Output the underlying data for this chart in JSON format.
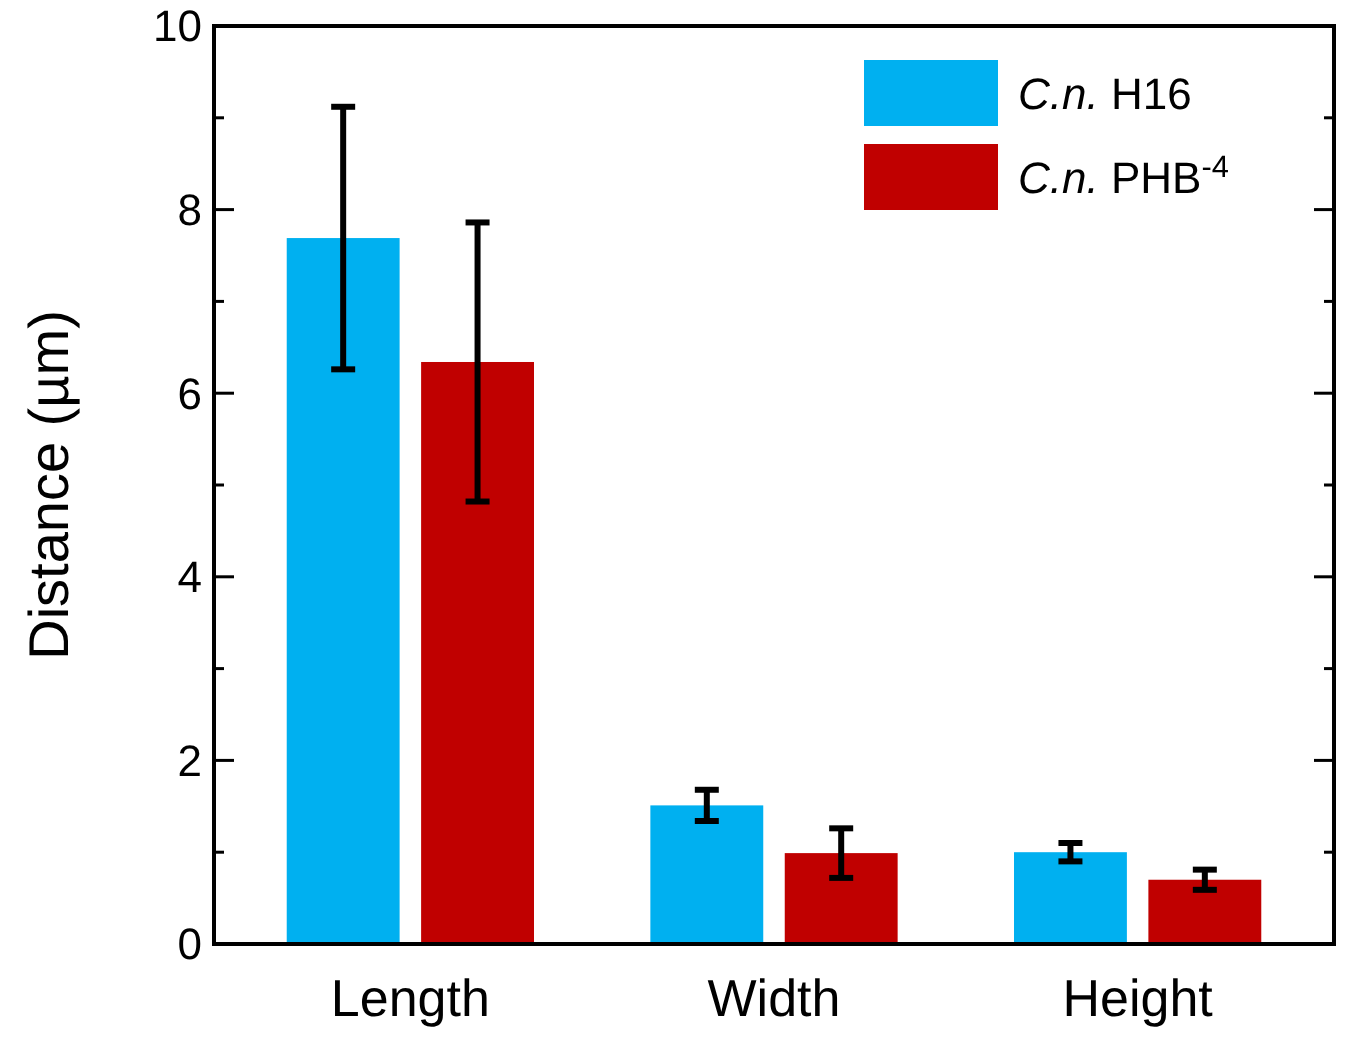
{
  "chart_data": {
    "type": "bar",
    "ylabel": "Distance (µm)",
    "categories": [
      "Length",
      "Width",
      "Height"
    ],
    "series": [
      {
        "name": "C.n. H16",
        "color": "#00b0f0",
        "values": [
          7.69,
          1.51,
          1.0
        ],
        "errors": [
          1.43,
          0.17,
          0.1
        ]
      },
      {
        "name": "C.n. PHB$^{-4}$",
        "color": "#c00000",
        "values": [
          6.34,
          0.99,
          0.7
        ],
        "errors": [
          1.52,
          0.27,
          0.11
        ]
      }
    ],
    "ylim": [
      0,
      10
    ],
    "yticks": [
      0,
      {
        "value": 1,
        "label": null
      },
      2,
      {
        "value": 3,
        "label": null
      },
      4,
      {
        "value": 5,
        "label": null
      },
      6,
      {
        "value": 7,
        "label": null
      },
      8,
      {
        "value": 9,
        "label": null
      },
      10
    ],
    "grid": false,
    "legend": "top right"
  }
}
